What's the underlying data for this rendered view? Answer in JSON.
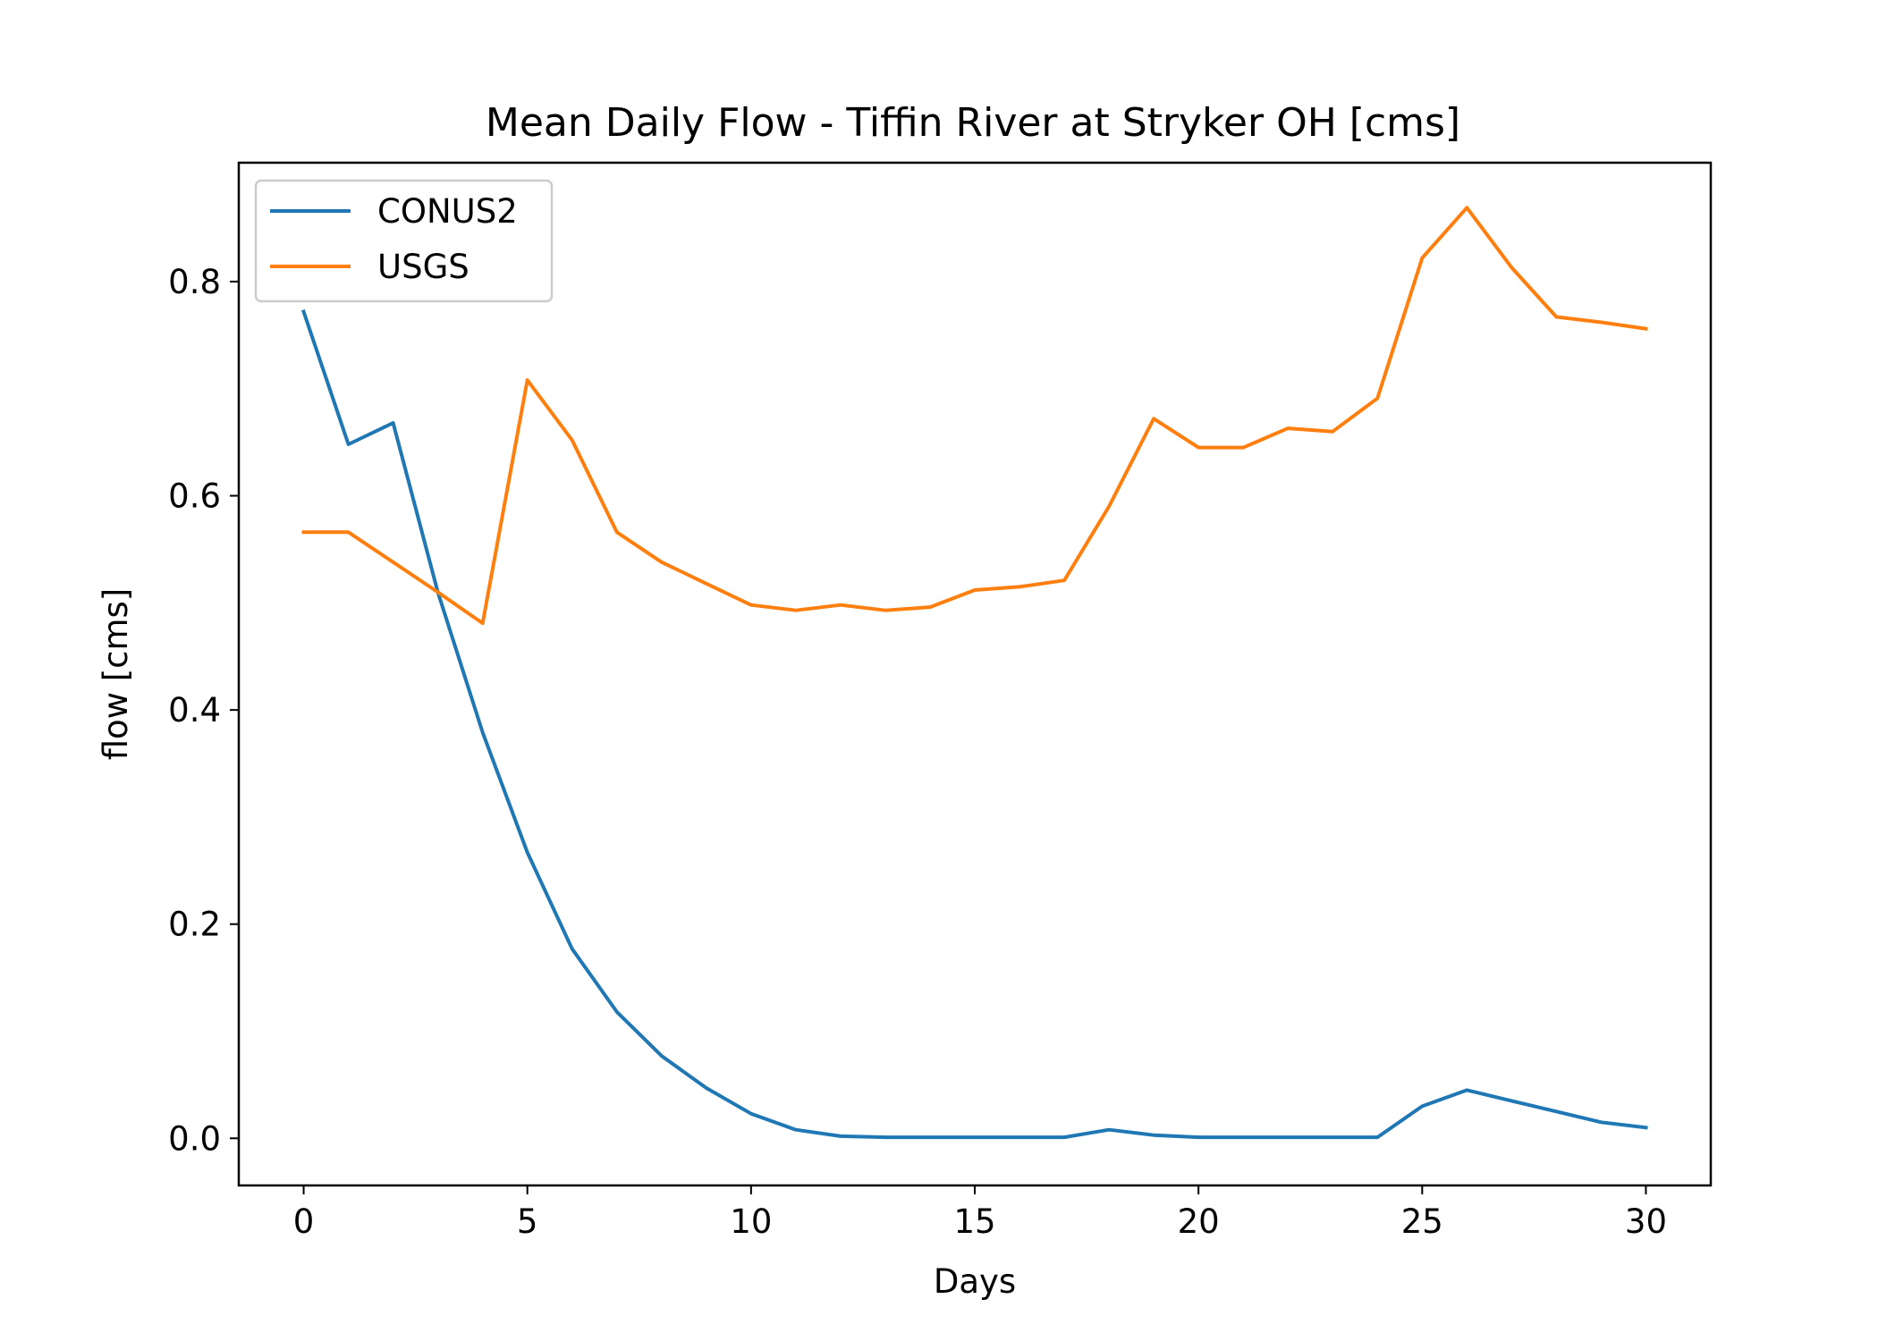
{
  "chart_data": {
    "type": "line",
    "title": "Mean Daily Flow - Tiffin River at Stryker OH [cms]",
    "xlabel": "Days",
    "ylabel": "flow [cms]",
    "xlim": [
      -1.45,
      31.45
    ],
    "ylim": [
      -0.044,
      0.911
    ],
    "x_ticks": [
      0,
      5,
      10,
      15,
      20,
      25,
      30
    ],
    "y_ticks": [
      0.0,
      0.2,
      0.4,
      0.6,
      0.8
    ],
    "x_tick_labels": [
      "0",
      "5",
      "10",
      "15",
      "20",
      "25",
      "30"
    ],
    "y_tick_labels": [
      "0.0",
      "0.2",
      "0.4",
      "0.6",
      "0.8"
    ],
    "grid": false,
    "legend_position": "upper-left",
    "x": [
      0,
      1,
      2,
      3,
      4,
      5,
      6,
      7,
      8,
      9,
      10,
      11,
      12,
      13,
      14,
      15,
      16,
      17,
      18,
      19,
      20,
      21,
      22,
      23,
      24,
      25,
      26,
      27,
      28,
      29,
      30
    ],
    "series": [
      {
        "name": "CONUS2",
        "color": "#1f77b4",
        "values": [
          0.772,
          0.648,
          0.668,
          0.51,
          0.379,
          0.267,
          0.177,
          0.118,
          0.077,
          0.047,
          0.023,
          0.008,
          0.002,
          0.001,
          0.001,
          0.001,
          0.001,
          0.001,
          0.008,
          0.003,
          0.001,
          0.001,
          0.001,
          0.001,
          0.001,
          0.03,
          0.045,
          0.035,
          0.025,
          0.015,
          0.01
        ]
      },
      {
        "name": "USGS",
        "color": "#ff7f0e",
        "values": [
          0.566,
          0.566,
          0.538,
          0.51,
          0.481,
          0.708,
          0.652,
          0.566,
          0.538,
          0.518,
          0.498,
          0.493,
          0.498,
          0.493,
          0.496,
          0.512,
          0.515,
          0.521,
          0.59,
          0.672,
          0.645,
          0.645,
          0.663,
          0.66,
          0.691,
          0.822,
          0.869,
          0.813,
          0.767,
          0.762,
          0.756
        ]
      }
    ]
  }
}
